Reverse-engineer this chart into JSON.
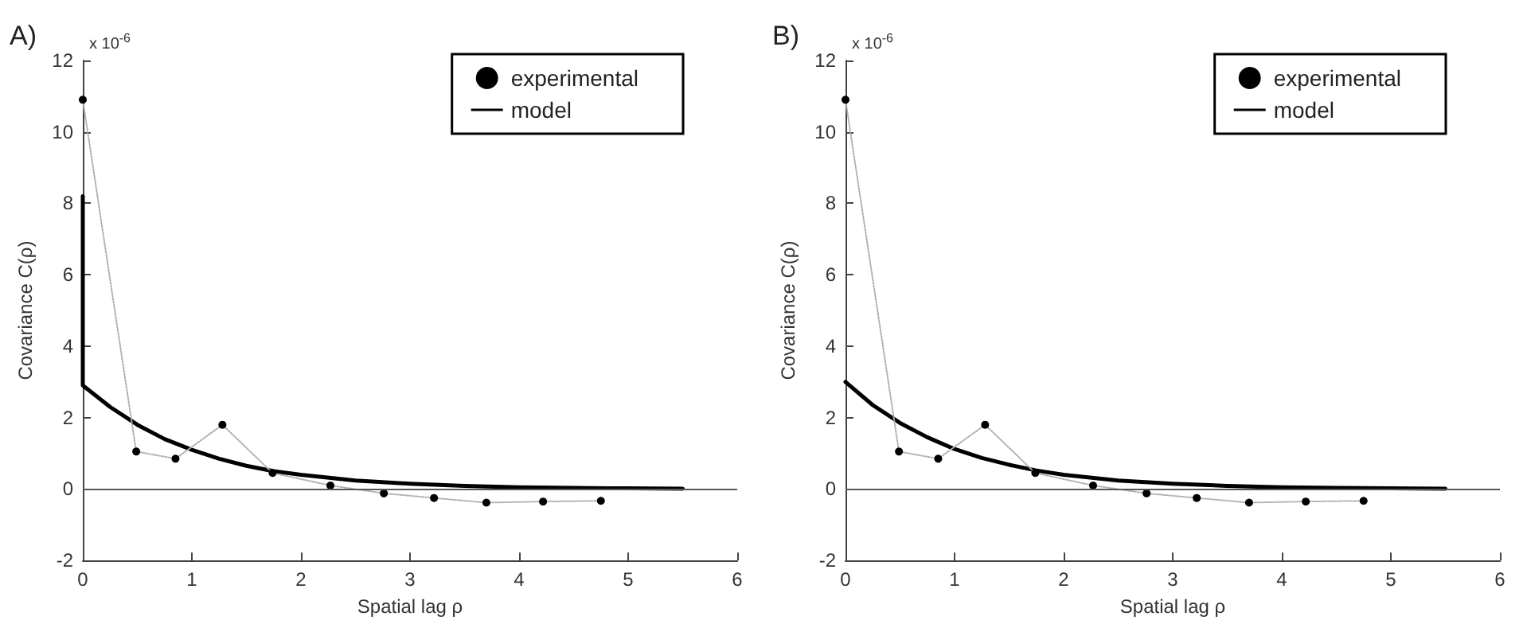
{
  "chart_data": [
    {
      "type": "line",
      "xlabel": "Spatial lag ρ",
      "ylabel": "Covariance C(ρ)",
      "annotations": [
        "A)",
        "x 10$^{-6}$"
      ],
      "xlim": [
        0,
        6
      ],
      "xticks": [
        0,
        1,
        2,
        3,
        4,
        5,
        6
      ],
      "ylim": [
        -2,
        12
      ],
      "yticks": [
        -2,
        0,
        2,
        4,
        6,
        8,
        10,
        12
      ],
      "grid": false,
      "legend": "top right",
      "ref_lines": [
        {
          "axis": "y",
          "value": 0,
          "color": "#555555"
        }
      ],
      "series": [
        {
          "name": "experimental",
          "marker": "circle",
          "line_style": "dotted",
          "color": "#000000",
          "x": [
            0,
            0.49,
            0.85,
            1.28,
            1.74,
            2.27,
            2.76,
            3.22,
            3.7,
            4.22,
            4.75
          ],
          "values": [
            10.9,
            1.05,
            0.85,
            1.8,
            0.45,
            0.1,
            -0.12,
            -0.25,
            -0.38,
            -0.35,
            -0.33
          ]
        },
        {
          "name": "model",
          "marker": "none",
          "line_style": "solid",
          "color": "#000000",
          "x": [
            0,
            0,
            0.25,
            0.5,
            0.75,
            1,
            1.25,
            1.5,
            1.75,
            2,
            2.5,
            3,
            3.5,
            4,
            4.5,
            5,
            5.5
          ],
          "values": [
            8.2,
            2.9,
            2.3,
            1.8,
            1.4,
            1.1,
            0.85,
            0.65,
            0.5,
            0.4,
            0.24,
            0.15,
            0.09,
            0.05,
            0.03,
            0.02,
            0.01
          ]
        }
      ]
    },
    {
      "type": "line",
      "xlabel": "Spatial lag ρ",
      "ylabel": "Covariance C(ρ)",
      "annotations": [
        "B)",
        "x 10$^{-6}$"
      ],
      "xlim": [
        0,
        6
      ],
      "xticks": [
        0,
        1,
        2,
        3,
        4,
        5,
        6
      ],
      "ylim": [
        -2,
        12
      ],
      "yticks": [
        -2,
        0,
        2,
        4,
        6,
        8,
        10,
        12
      ],
      "grid": false,
      "legend": "top right",
      "ref_lines": [
        {
          "axis": "y",
          "value": 0,
          "color": "#555555"
        }
      ],
      "series": [
        {
          "name": "experimental",
          "marker": "circle",
          "line_style": "dotted",
          "color": "#000000",
          "x": [
            0,
            0.49,
            0.85,
            1.28,
            1.74,
            2.27,
            2.76,
            3.22,
            3.7,
            4.22,
            4.75
          ],
          "values": [
            10.9,
            1.05,
            0.85,
            1.8,
            0.45,
            0.1,
            -0.12,
            -0.25,
            -0.38,
            -0.35,
            -0.33
          ]
        },
        {
          "name": "model",
          "marker": "none",
          "line_style": "solid",
          "color": "#000000",
          "x": [
            0,
            0.25,
            0.5,
            0.75,
            1,
            1.25,
            1.5,
            1.75,
            2,
            2.5,
            3,
            3.5,
            4,
            4.5,
            5,
            5.5
          ],
          "values": [
            3.0,
            2.35,
            1.85,
            1.45,
            1.12,
            0.87,
            0.68,
            0.52,
            0.4,
            0.24,
            0.15,
            0.09,
            0.05,
            0.03,
            0.02,
            0.01
          ]
        }
      ]
    }
  ]
}
